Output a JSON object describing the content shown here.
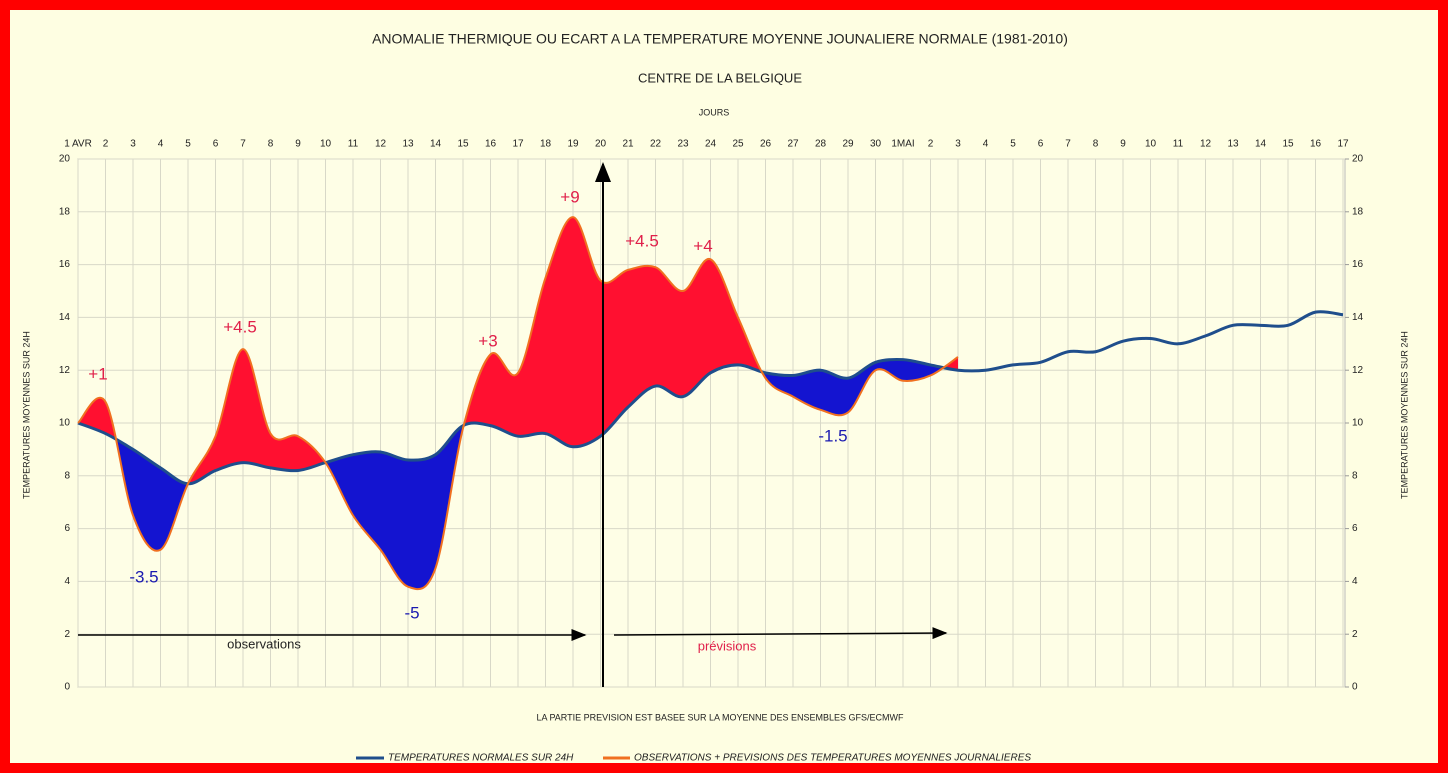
{
  "chart_data": {
    "type": "line",
    "title": "ANOMALIE THERMIQUE OU ECART A LA TEMPERATURE MOYENNE JOUNALIERE NORMALE (1981-2010)",
    "subtitle": "CENTRE DE LA BELGIQUE",
    "x_label": "JOURS",
    "y_label": "TEMPERATURES MOYENNES SUR 24H",
    "y2_label": "TEMPERATURES MOYENNES SUR 24H",
    "note": "LA PARTIE PREVISION EST BASEE SUR LA MOYENNE DES ENSEMBLES GFS/ECMWF",
    "period_labels": [
      "observations",
      "prévisions"
    ],
    "categories": [
      "1 AVR",
      "2",
      "3",
      "4",
      "5",
      "6",
      "7",
      "8",
      "9",
      "10",
      "11",
      "12",
      "13",
      "14",
      "15",
      "16",
      "17",
      "18",
      "19",
      "20",
      "21",
      "22",
      "23",
      "24",
      "25",
      "26",
      "27",
      "28",
      "29",
      "30",
      "1MAI",
      "2",
      "3",
      "4",
      "5",
      "6",
      "7",
      "8",
      "9",
      "10",
      "11",
      "12",
      "13",
      "14",
      "15",
      "16",
      "17"
    ],
    "series": [
      {
        "name": "TEMPERATURES NORMALES SUR 24H",
        "color": "#1f4e8c",
        "values": [
          10,
          9.6,
          9.0,
          8.3,
          7.7,
          8.2,
          8.5,
          8.3,
          8.2,
          8.5,
          8.8,
          8.9,
          8.6,
          8.8,
          9.9,
          9.9,
          9.5,
          9.6,
          9.1,
          9.5,
          10.6,
          11.4,
          11.0,
          11.9,
          12.2,
          11.9,
          11.8,
          12.0,
          11.7,
          12.3,
          12.4,
          12.2,
          12.0,
          12.0,
          12.2,
          12.3,
          12.7,
          12.7,
          13.1,
          13.2,
          13.0,
          13.3,
          13.7,
          13.7,
          13.7,
          14.2,
          14.1
        ]
      },
      {
        "name": "OBSERVATIONS + PREVISIONS DES TEMPERATURES MOYENNES JOURNALIERES",
        "color": "#f07020",
        "values": [
          10,
          10.8,
          6.5,
          5.2,
          7.7,
          9.5,
          12.8,
          9.6,
          9.5,
          8.5,
          6.5,
          5.2,
          3.8,
          4.5,
          9.8,
          12.6,
          11.9,
          15.5,
          17.8,
          15.4,
          15.8,
          15.9,
          15.0,
          16.2,
          14.0,
          11.7,
          11.0,
          10.5,
          10.4,
          12.0,
          11.6,
          11.8,
          12.5,
          null,
          null,
          null,
          null,
          null,
          null,
          null,
          null,
          null,
          null,
          null,
          null,
          null,
          null
        ]
      }
    ],
    "above_color": "#ff1030",
    "below_color": "#1414d0",
    "annotations": [
      {
        "text": "+1",
        "color": "#e0204a"
      },
      {
        "text": "-3.5",
        "color": "#1a1ab0"
      },
      {
        "text": "+4.5",
        "color": "#e0204a"
      },
      {
        "text": "-5",
        "color": "#1a1ab0"
      },
      {
        "text": "+3",
        "color": "#e0204a"
      },
      {
        "text": "+9",
        "color": "#e0204a"
      },
      {
        "text": "+4.5",
        "color": "#e0204a"
      },
      {
        "text": "+4",
        "color": "#e0204a"
      },
      {
        "text": "-1.5",
        "color": "#1a1ab0"
      }
    ],
    "ylim": [
      0,
      20
    ],
    "yticks": [
      0,
      2,
      4,
      6,
      8,
      10,
      12,
      14,
      16,
      18,
      20
    ],
    "y2lim": [
      0,
      20
    ],
    "y2ticks": [
      0,
      2,
      4,
      6,
      8,
      10,
      12,
      14,
      16,
      18,
      20
    ],
    "grid": true
  }
}
